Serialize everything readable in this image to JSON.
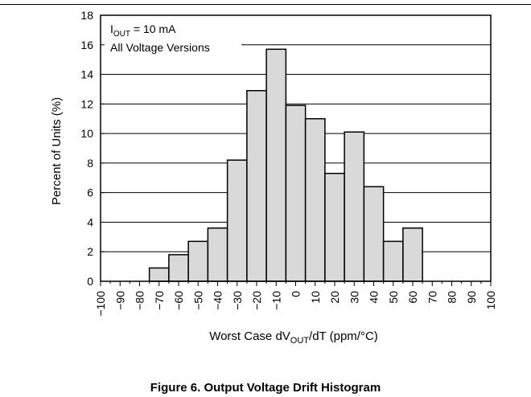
{
  "figure_caption": "Figure 6. Output Voltage Drift Histogram",
  "chart_data": {
    "type": "bar",
    "title": "",
    "xlabel": {
      "base": "Worst Case dV",
      "sub": "OUT",
      "tail": "/dT (ppm/°C)"
    },
    "ylabel": "Percent of Units (%)",
    "ylim": [
      0,
      18
    ],
    "yticks": [
      "0",
      "2",
      "4",
      "6",
      "8",
      "10",
      "12",
      "14",
      "16",
      "18"
    ],
    "xlim": [
      -100,
      100
    ],
    "xtick_values": [
      -100,
      -90,
      -80,
      -70,
      -60,
      -50,
      -40,
      -30,
      -20,
      -10,
      0,
      10,
      20,
      30,
      40,
      50,
      60,
      70,
      80,
      90,
      100
    ],
    "xtick_labels": [
      "−100",
      "−90",
      "−80",
      "−70",
      "−60",
      "−50",
      "−40",
      "−30",
      "−20",
      "−10",
      "0",
      "10",
      "20",
      "30",
      "40",
      "50",
      "60",
      "70",
      "80",
      "90",
      "100"
    ],
    "bin_width": 10,
    "bin_centers": [
      -70,
      -60,
      -50,
      -40,
      -30,
      -20,
      -10,
      0,
      10,
      20,
      30,
      40,
      50,
      60
    ],
    "values": [
      0.9,
      1.8,
      2.7,
      3.6,
      8.2,
      12.9,
      15.7,
      11.9,
      11.0,
      7.3,
      10.1,
      6.4,
      2.7,
      3.6
    ],
    "grid": "horizontal",
    "bar_fill": "#d9d9d9",
    "bar_edge": "#000000",
    "annotations": [
      {
        "base": "I",
        "sub": "OUT",
        "tail": " = 10 mA"
      },
      {
        "base": "All Voltage Versions",
        "sub": "",
        "tail": ""
      }
    ]
  }
}
